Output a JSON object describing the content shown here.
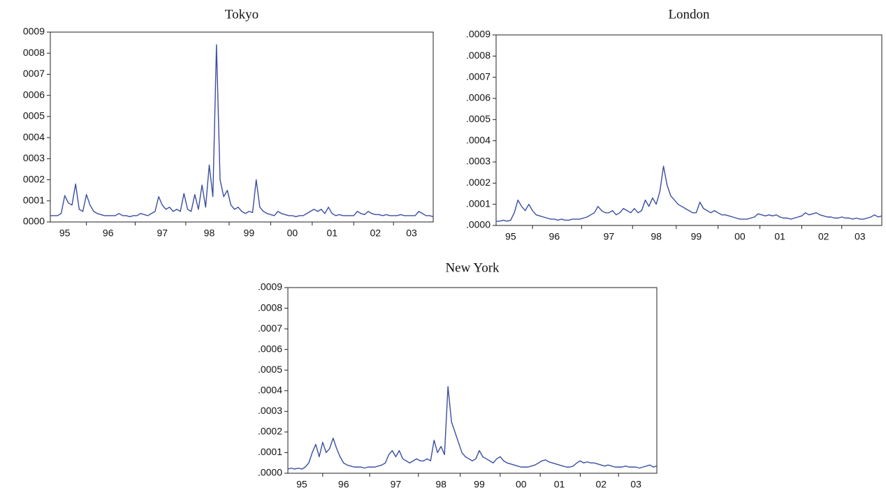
{
  "chart_data": [
    {
      "type": "line",
      "title": "Tokyo",
      "color": "#3a4ea0",
      "categories": [
        null,
        null,
        null,
        null,
        "95",
        null,
        null,
        null,
        null,
        null,
        null,
        null,
        null,
        null,
        null,
        null,
        "96",
        null,
        null,
        null,
        null,
        null,
        null,
        null,
        null,
        null,
        null,
        null,
        null,
        null,
        null,
        "97",
        null,
        null,
        null,
        null,
        null,
        null,
        null,
        null,
        null,
        null,
        null,
        null,
        "98",
        null,
        null,
        null,
        null,
        null,
        null,
        null,
        null,
        null,
        null,
        "99",
        null,
        null,
        null,
        null,
        null,
        null,
        null,
        null,
        null,
        null,
        null,
        "00",
        null,
        null,
        null,
        null,
        null,
        null,
        null,
        null,
        null,
        null,
        "01",
        null,
        null,
        null,
        null,
        null,
        null,
        null,
        null,
        null,
        null,
        null,
        "02",
        null,
        null,
        null,
        null,
        null,
        null,
        null,
        null,
        null,
        "03",
        null,
        null,
        null,
        null,
        null,
        null
      ],
      "values": [
        3e-05,
        3e-05,
        3e-05,
        4e-05,
        0.000125,
        9e-05,
        8e-05,
        0.00018,
        6e-05,
        5e-05,
        0.00013,
        8e-05,
        5e-05,
        4e-05,
        3.5e-05,
        3e-05,
        3e-05,
        3e-05,
        3e-05,
        4e-05,
        3e-05,
        3e-05,
        2.5e-05,
        3e-05,
        3e-05,
        4e-05,
        3.5e-05,
        3e-05,
        4e-05,
        5e-05,
        0.00012,
        8e-05,
        6e-05,
        7e-05,
        5e-05,
        6e-05,
        5e-05,
        0.000135,
        6e-05,
        5e-05,
        0.00013,
        6e-05,
        0.000175,
        7e-05,
        0.00027,
        0.00012,
        0.00084,
        0.0002,
        0.00012,
        0.00015,
        8e-05,
        6e-05,
        7e-05,
        5e-05,
        4e-05,
        5e-05,
        4.5e-05,
        0.0002,
        7e-05,
        5e-05,
        4e-05,
        3.5e-05,
        3e-05,
        5e-05,
        4e-05,
        3.5e-05,
        3e-05,
        3e-05,
        2.5e-05,
        3e-05,
        3e-05,
        4e-05,
        5e-05,
        6e-05,
        5e-05,
        6e-05,
        4e-05,
        7e-05,
        4e-05,
        3e-05,
        3.5e-05,
        3e-05,
        3e-05,
        3e-05,
        3e-05,
        5e-05,
        4e-05,
        3.5e-05,
        5e-05,
        4e-05,
        3.5e-05,
        3.5e-05,
        3e-05,
        3.5e-05,
        3e-05,
        3e-05,
        3e-05,
        3.5e-05,
        3e-05,
        3e-05,
        3e-05,
        3e-05,
        5e-05,
        4e-05,
        3e-05,
        3e-05,
        2.5e-05
      ],
      "ylim": [
        0,
        0.0009
      ],
      "yticks": [
        {
          "value": 0,
          "label": "0000"
        },
        {
          "value": 0.0001,
          "label": "0001"
        },
        {
          "value": 0.0002,
          "label": "0002"
        },
        {
          "value": 0.0003,
          "label": "0003"
        },
        {
          "value": 0.0004,
          "label": "0004"
        },
        {
          "value": 0.0005,
          "label": "0005"
        },
        {
          "value": 0.0006,
          "label": "0006"
        },
        {
          "value": 0.0007,
          "label": "0007"
        },
        {
          "value": 0.0008,
          "label": "0008"
        },
        {
          "value": 0.0009,
          "label": "0009"
        }
      ]
    },
    {
      "type": "line",
      "title": "London",
      "color": "#3a4ea0",
      "categories": [
        null,
        null,
        null,
        null,
        "95",
        null,
        null,
        null,
        null,
        null,
        null,
        null,
        null,
        null,
        null,
        null,
        "96",
        null,
        null,
        null,
        null,
        null,
        null,
        null,
        null,
        null,
        null,
        null,
        null,
        null,
        null,
        "97",
        null,
        null,
        null,
        null,
        null,
        null,
        null,
        null,
        null,
        null,
        null,
        null,
        "98",
        null,
        null,
        null,
        null,
        null,
        null,
        null,
        null,
        null,
        null,
        "99",
        null,
        null,
        null,
        null,
        null,
        null,
        null,
        null,
        null,
        null,
        null,
        "00",
        null,
        null,
        null,
        null,
        null,
        null,
        null,
        null,
        null,
        null,
        "01",
        null,
        null,
        null,
        null,
        null,
        null,
        null,
        null,
        null,
        null,
        null,
        "02",
        null,
        null,
        null,
        null,
        null,
        null,
        null,
        null,
        null,
        "03",
        null,
        null,
        null,
        null,
        null,
        null
      ],
      "values": [
        2e-05,
        2e-05,
        2.5e-05,
        2e-05,
        2.5e-05,
        6e-05,
        0.00012,
        9e-05,
        7e-05,
        0.0001,
        7e-05,
        5e-05,
        4.5e-05,
        4e-05,
        3.5e-05,
        3e-05,
        3e-05,
        2.5e-05,
        3e-05,
        2.5e-05,
        2.5e-05,
        3e-05,
        3e-05,
        3e-05,
        3.5e-05,
        4e-05,
        5e-05,
        6e-05,
        9e-05,
        7e-05,
        6e-05,
        6e-05,
        7e-05,
        5e-05,
        6e-05,
        8e-05,
        7e-05,
        6e-05,
        8e-05,
        6e-05,
        7e-05,
        0.00012,
        9e-05,
        0.00013,
        0.0001,
        0.00016,
        0.00028,
        0.00019,
        0.00014,
        0.00012,
        0.0001,
        9e-05,
        8e-05,
        7e-05,
        6e-05,
        6e-05,
        0.00011,
        8e-05,
        7e-05,
        6e-05,
        7e-05,
        6e-05,
        5e-05,
        5e-05,
        4.5e-05,
        4e-05,
        3.5e-05,
        3e-05,
        3e-05,
        3e-05,
        3.5e-05,
        4e-05,
        5.5e-05,
        5e-05,
        4.5e-05,
        5e-05,
        4.5e-05,
        5e-05,
        4e-05,
        3.5e-05,
        3.5e-05,
        3e-05,
        3.5e-05,
        4e-05,
        4.5e-05,
        6e-05,
        5e-05,
        5.5e-05,
        6e-05,
        5e-05,
        4.5e-05,
        4e-05,
        4e-05,
        3.5e-05,
        3.5e-05,
        4e-05,
        3.5e-05,
        3.5e-05,
        3e-05,
        3.5e-05,
        3e-05,
        3e-05,
        3.5e-05,
        4e-05,
        5e-05,
        4e-05,
        4.5e-05
      ],
      "ylim": [
        0,
        0.0009
      ],
      "yticks": [
        {
          "value": 0,
          "label": ".0000"
        },
        {
          "value": 0.0001,
          "label": ".0001"
        },
        {
          "value": 0.0002,
          "label": ".0002"
        },
        {
          "value": 0.0003,
          "label": ".0003"
        },
        {
          "value": 0.0004,
          "label": ".0004"
        },
        {
          "value": 0.0005,
          "label": ".0005"
        },
        {
          "value": 0.0006,
          "label": ".0006"
        },
        {
          "value": 0.0007,
          "label": ".0007"
        },
        {
          "value": 0.0008,
          "label": ".0008"
        },
        {
          "value": 0.0009,
          "label": ".0009"
        }
      ]
    },
    {
      "type": "line",
      "title": "New York",
      "color": "#3a4ea0",
      "categories": [
        null,
        null,
        null,
        null,
        "95",
        null,
        null,
        null,
        null,
        null,
        null,
        null,
        null,
        null,
        null,
        null,
        "96",
        null,
        null,
        null,
        null,
        null,
        null,
        null,
        null,
        null,
        null,
        null,
        null,
        null,
        null,
        "97",
        null,
        null,
        null,
        null,
        null,
        null,
        null,
        null,
        null,
        null,
        null,
        null,
        "98",
        null,
        null,
        null,
        null,
        null,
        null,
        null,
        null,
        null,
        null,
        "99",
        null,
        null,
        null,
        null,
        null,
        null,
        null,
        null,
        null,
        null,
        null,
        "00",
        null,
        null,
        null,
        null,
        null,
        null,
        null,
        null,
        null,
        null,
        "01",
        null,
        null,
        null,
        null,
        null,
        null,
        null,
        null,
        null,
        null,
        null,
        "02",
        null,
        null,
        null,
        null,
        null,
        null,
        null,
        null,
        null,
        "03",
        null,
        null,
        null,
        null,
        null,
        null
      ],
      "values": [
        2e-05,
        2.5e-05,
        2e-05,
        2.5e-05,
        2e-05,
        3e-05,
        5e-05,
        0.0001,
        0.00014,
        8e-05,
        0.00015,
        0.0001,
        0.00012,
        0.00017,
        0.00012,
        8e-05,
        5e-05,
        4e-05,
        3.5e-05,
        3e-05,
        3e-05,
        3e-05,
        2.5e-05,
        3e-05,
        3e-05,
        3e-05,
        3.5e-05,
        4e-05,
        5e-05,
        9e-05,
        0.00011,
        8e-05,
        0.00011,
        7e-05,
        6e-05,
        5e-05,
        6e-05,
        7e-05,
        6e-05,
        6e-05,
        7e-05,
        6e-05,
        0.00016,
        0.0001,
        0.00013,
        9e-05,
        0.00042,
        0.00025,
        0.0002,
        0.00015,
        0.0001,
        8e-05,
        7e-05,
        6e-05,
        7e-05,
        0.00011,
        8e-05,
        7e-05,
        6e-05,
        5e-05,
        7e-05,
        8e-05,
        6e-05,
        5e-05,
        4.5e-05,
        4e-05,
        3.5e-05,
        3e-05,
        3e-05,
        3e-05,
        3.5e-05,
        4e-05,
        5e-05,
        6e-05,
        6.5e-05,
        5.5e-05,
        5e-05,
        4.5e-05,
        4e-05,
        3.5e-05,
        3e-05,
        3e-05,
        3.5e-05,
        5e-05,
        6e-05,
        5e-05,
        5.5e-05,
        5e-05,
        5e-05,
        4.5e-05,
        4e-05,
        3.5e-05,
        4e-05,
        3.5e-05,
        3e-05,
        3e-05,
        3e-05,
        3.5e-05,
        3e-05,
        3e-05,
        3e-05,
        2.5e-05,
        3e-05,
        3.5e-05,
        4e-05,
        3e-05,
        3.5e-05
      ],
      "ylim": [
        0,
        0.0009
      ],
      "yticks": [
        {
          "value": 0,
          "label": ".0000"
        },
        {
          "value": 0.0001,
          "label": ".0001"
        },
        {
          "value": 0.0002,
          "label": ".0002"
        },
        {
          "value": 0.0003,
          "label": ".0003"
        },
        {
          "value": 0.0004,
          "label": ".0004"
        },
        {
          "value": 0.0005,
          "label": ".0005"
        },
        {
          "value": 0.0006,
          "label": ".0006"
        },
        {
          "value": 0.0007,
          "label": ".0007"
        },
        {
          "value": 0.0008,
          "label": ".0008"
        },
        {
          "value": 0.0009,
          "label": ".0009"
        }
      ]
    }
  ]
}
